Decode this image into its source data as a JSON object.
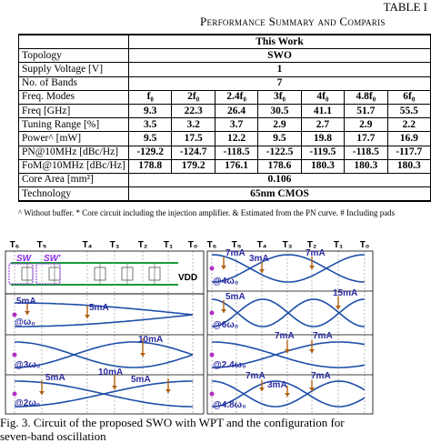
{
  "header": {
    "table_label": "TABLE I",
    "table_title": "Performance Summary and Comparis"
  },
  "table": {
    "rows": [
      {
        "label": "",
        "values": [
          "This Work"
        ]
      },
      {
        "label": "Topology",
        "values": [
          "SWO"
        ]
      },
      {
        "label": "Supply Voltage [V]",
        "values": [
          "1"
        ]
      },
      {
        "label": "No. of Bands",
        "values": [
          "7"
        ]
      },
      {
        "label": "Freq. Modes",
        "values": [
          "f₀",
          "2f₀",
          "2.4f₀",
          "3f₀",
          "4f₀",
          "4.8f₀",
          "6f₀"
        ]
      },
      {
        "label": "Freq [GHz]",
        "values": [
          "9.3",
          "22.3",
          "26.4",
          "30.5",
          "41.1",
          "51.7",
          "55.5"
        ]
      },
      {
        "label": "Tuning Range [%]",
        "values": [
          "3.5",
          "3.2",
          "3.7",
          "2.9",
          "2.7",
          "2.9",
          "2.2"
        ]
      },
      {
        "label": "Power^ [mW]",
        "values": [
          "9.5",
          "17.5",
          "12.2",
          "9.5",
          "19.8",
          "17.7",
          "16.9"
        ]
      },
      {
        "label": "PN@10MHz [dBc/Hz]",
        "values": [
          "-129.2",
          "-124.7",
          "-118.5",
          "-122.5",
          "-119.5",
          "-118.5",
          "-117.7"
        ]
      },
      {
        "label": "FoM@10MHz [dBc/Hz]",
        "values": [
          "178.8",
          "179.2",
          "176.1",
          "178.6",
          "180.3",
          "180.3",
          "180.3"
        ]
      },
      {
        "label": "Core Area [mm²]",
        "values": [
          "0.106"
        ]
      },
      {
        "label": "Technology",
        "values": [
          "65nm CMOS"
        ]
      }
    ]
  },
  "footnote": "^ Without buffer. * Core circuit including the injection amplifier. & Estimated from the PN curve. # Including pads",
  "figure": {
    "left_taps": [
      "T₆",
      "T₅",
      "T₄",
      "T₃",
      "T₂",
      "T₁",
      "T₀"
    ],
    "right_taps": [
      "T₆",
      "T₅",
      "T₄",
      "T₃",
      "T₂",
      "T₁",
      "T₀"
    ],
    "switch_labels": [
      "SW",
      "SW'"
    ],
    "supply": "VDD",
    "left_labels": [
      "5mA",
      "5mA",
      "@ω₀",
      "10mA",
      "@3ω₀",
      "5mA",
      "10mA",
      "5mA",
      "@2ω₀"
    ],
    "right_labels": [
      "7mA",
      "3mA",
      "7mA",
      "@4ω₀",
      "5mA",
      "15mA",
      "@6ω₀",
      "7mA",
      "7mA",
      "@2.4ω₀",
      "7mA",
      "3mA",
      "7mA",
      "@4.8ω₀"
    ]
  },
  "caption": [
    "Fig. 3.   Circuit of the proposed SWO with WPT and the configuration for",
    "seven-band oscillation"
  ]
}
